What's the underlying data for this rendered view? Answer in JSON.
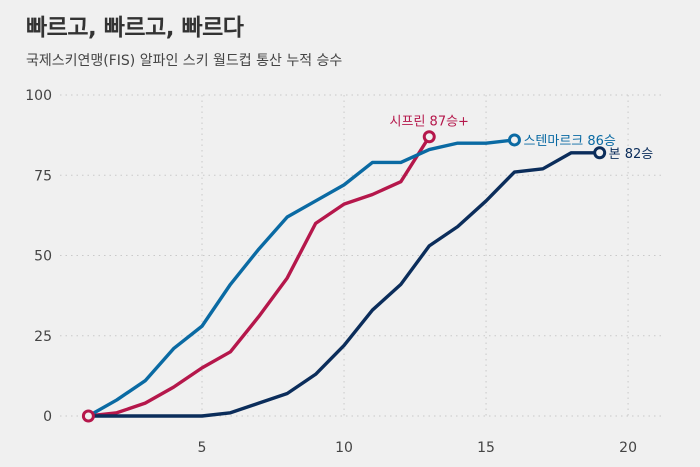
{
  "title": "빠르고, 빠르고, 빠르다",
  "subtitle": "국제스키연맹(FIS) 알파인 스키 월드컵 통산 누적 승수",
  "chart_data": {
    "type": "line",
    "title": "빠르고, 빠르고, 빠르다",
    "subtitle": "국제스키연맹(FIS) 알파인 스키 월드컵 통산 누적 승수",
    "xlabel": "",
    "ylabel": "",
    "xlim": [
      0,
      21.3
    ],
    "ylim": [
      0,
      100
    ],
    "x_ticks": [
      5,
      10,
      15,
      20
    ],
    "y_ticks": [
      0,
      25,
      50,
      75,
      100
    ],
    "grid": true,
    "series": [
      {
        "name": "시프린 87승+",
        "color": "#b5174b",
        "label": "시프린 87승+",
        "label_position": "above-end",
        "x": [
          1,
          2,
          3,
          4,
          5,
          6,
          7,
          8,
          9,
          10,
          11,
          12,
          13
        ],
        "y": [
          0,
          1,
          4,
          9,
          15,
          20,
          31,
          43,
          60,
          66,
          69,
          73,
          87
        ]
      },
      {
        "name": "스텐마르크 86승",
        "color": "#0a6aa3",
        "label": "스텐마르크 86승",
        "label_position": "right-end",
        "x": [
          1,
          2,
          3,
          4,
          5,
          6,
          7,
          8,
          9,
          10,
          11,
          12,
          13,
          14,
          15,
          16
        ],
        "y": [
          0,
          5,
          11,
          21,
          28,
          41,
          52,
          62,
          67,
          72,
          79,
          79,
          83,
          85,
          85,
          86
        ]
      },
      {
        "name": "본 82승",
        "color": "#0b2d5b",
        "label": "본 82승",
        "label_position": "right-end",
        "x": [
          1,
          2,
          3,
          4,
          5,
          6,
          7,
          8,
          9,
          10,
          11,
          12,
          13,
          14,
          15,
          16,
          17,
          18,
          19
        ],
        "y": [
          0,
          0,
          0,
          0,
          0,
          1,
          4,
          7,
          13,
          22,
          33,
          41,
          53,
          59,
          67,
          76,
          77,
          82,
          82
        ]
      }
    ]
  }
}
